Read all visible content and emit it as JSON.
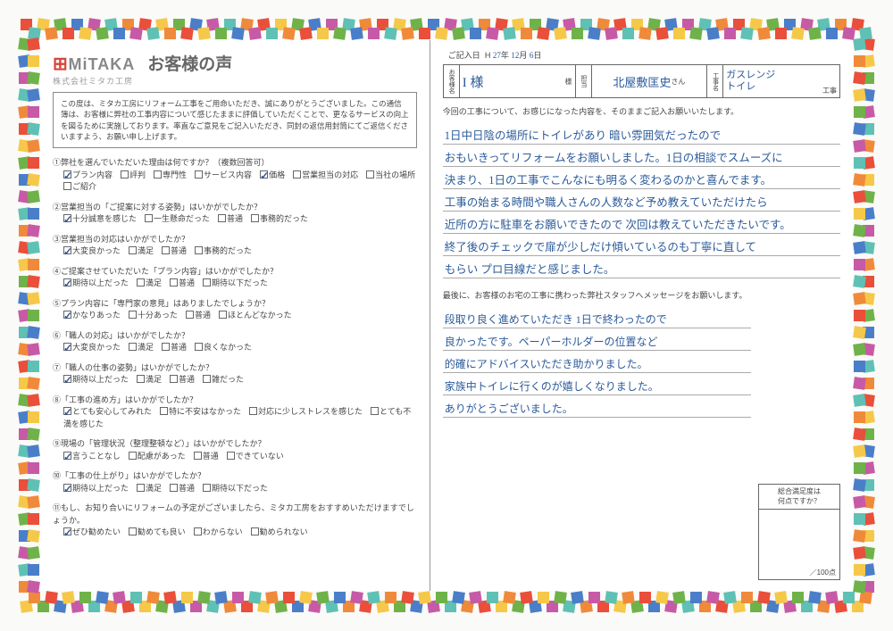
{
  "border_colors": [
    "#e94f3a",
    "#f6c84a",
    "#6fb24a",
    "#4a7ec9",
    "#c75aa6",
    "#5fc1b5",
    "#f08a3b"
  ],
  "logo": {
    "brand": "MiTAKA",
    "sub": "株式会社ミタカ工房",
    "mark": "⊞"
  },
  "title": "お客様の声",
  "intro": "この度は、ミタカ工房にリフォーム工事をご用命いただき、誠にありがとうございました。この通信簿は、お客様に弊社の工事内容について感じたままに評価していただくことで、更なるサービスの向上を図るために実施しております。率直なご意見をご記入いただき、同封の返信用封筒にてご返信くださいますよう、お願い申し上げます。",
  "questions": [
    {
      "t": "①弊社を選んでいただいた理由は何ですか？（複数回答可）",
      "opts": [
        {
          "l": "プラン内容",
          "c": true
        },
        {
          "l": "評判",
          "c": false
        },
        {
          "l": "専門性",
          "c": false
        },
        {
          "l": "サービス内容",
          "c": false
        },
        {
          "l": "価格",
          "c": true
        },
        {
          "l": "営業担当の対応",
          "c": false
        },
        {
          "l": "当社の場所",
          "c": false
        },
        {
          "l": "ご紹介",
          "c": false
        }
      ]
    },
    {
      "t": "②営業担当の「ご提案に対する姿勢」はいかがでしたか？",
      "opts": [
        {
          "l": "十分誠意を感じた",
          "c": true
        },
        {
          "l": "一生懸命だった",
          "c": false
        },
        {
          "l": "普通",
          "c": false
        },
        {
          "l": "事務的だった",
          "c": false
        }
      ]
    },
    {
      "t": "③営業担当の対応はいかがでしたか？",
      "opts": [
        {
          "l": "大変良かった",
          "c": true
        },
        {
          "l": "満足",
          "c": false
        },
        {
          "l": "普通",
          "c": false
        },
        {
          "l": "事務的だった",
          "c": false
        }
      ]
    },
    {
      "t": "④ご提案させていただいた「プラン内容」はいかがでしたか？",
      "opts": [
        {
          "l": "期待以上だった",
          "c": true
        },
        {
          "l": "満足",
          "c": false
        },
        {
          "l": "普通",
          "c": false
        },
        {
          "l": "期待以下だった",
          "c": false
        }
      ]
    },
    {
      "t": "⑤プラン内容に「専門家の意見」はありましたでしょうか？",
      "opts": [
        {
          "l": "かなりあった",
          "c": true
        },
        {
          "l": "十分あった",
          "c": false
        },
        {
          "l": "普通",
          "c": false
        },
        {
          "l": "ほとんどなかった",
          "c": false
        }
      ]
    },
    {
      "t": "⑥「職人の対応」はいかがでしたか？",
      "opts": [
        {
          "l": "大変良かった",
          "c": true
        },
        {
          "l": "満足",
          "c": false
        },
        {
          "l": "普通",
          "c": false
        },
        {
          "l": "良くなかった",
          "c": false
        }
      ]
    },
    {
      "t": "⑦「職人の仕事の姿勢」はいかがでしたか？",
      "opts": [
        {
          "l": "期待以上だった",
          "c": true
        },
        {
          "l": "満足",
          "c": false
        },
        {
          "l": "普通",
          "c": false
        },
        {
          "l": "雑だった",
          "c": false
        }
      ]
    },
    {
      "t": "⑧「工事の進め方」はいかがでしたか？",
      "opts": [
        {
          "l": "とても安心してみれた",
          "c": true
        },
        {
          "l": "特に不安はなかった",
          "c": false
        },
        {
          "l": "対応に少しストレスを感じた",
          "c": false
        },
        {
          "l": "とても不満を感じた",
          "c": false
        }
      ]
    },
    {
      "t": "⑨現場の「管理状況（整理整頓など）」はいかがでしたか？",
      "opts": [
        {
          "l": "言うことなし",
          "c": true
        },
        {
          "l": "配慮があった",
          "c": false
        },
        {
          "l": "普通",
          "c": false
        },
        {
          "l": "できていない",
          "c": false
        }
      ]
    },
    {
      "t": "⑩「工事の仕上がり」はいかがでしたか？",
      "opts": [
        {
          "l": "期待以上だった",
          "c": true
        },
        {
          "l": "満足",
          "c": false
        },
        {
          "l": "普通",
          "c": false
        },
        {
          "l": "期待以下だった",
          "c": false
        }
      ]
    },
    {
      "t": "⑪もし、お知り合いにリフォームの予定がございましたら、ミタカ工房をおすすめいただけますでしょうか。",
      "opts": [
        {
          "l": "ぜひ勧めたい",
          "c": true
        },
        {
          "l": "勧めても良い",
          "c": false
        },
        {
          "l": "わからない",
          "c": false
        },
        {
          "l": "勧められない",
          "c": false
        }
      ]
    }
  ],
  "date": {
    "label": "ご記入日",
    "era": "H",
    "y": "27",
    "ym": "年",
    "m": "12",
    "mm": "月",
    "d": "6",
    "dm": "日"
  },
  "info": {
    "labels": {
      "cust": "お客様名",
      "staff": "担当",
      "work": "工事名"
    },
    "customer": "I 様",
    "cust_suffix": "様",
    "staff": "北屋敷匡史",
    "staff_suffix": "さん",
    "work": "ガスレンジ\nトイレ",
    "work_suffix": "工事"
  },
  "feedback_label": "今回の工事について、お感じになった内容を、そのままご記入お願いいたします。",
  "feedback_lines": [
    "1日中日陰の場所にトイレがあり 暗い雰囲気だったので",
    "おもいきってリフォームをお願いしました。1日の相談でスムーズに",
    "決まり、1日の工事でこんなにも明るく変わるのかと喜んでます。",
    "工事の始まる時間や職人さんの人数など予め教えていただけたら",
    "近所の方に駐車をお願いできたので 次回は教えていただきたいです。",
    "終了後のチェックで扉が少しだけ傾いているのも丁寧に直して",
    "もらい プロ目線だと感じました。"
  ],
  "message_label": "最後に、お客様のお宅の工事に携わった弊社スタッフへメッセージをお願いします。",
  "message_lines": [
    "段取り良く進めていただき 1日で終わったので",
    "良かったです。ペーパーホルダーの位置など",
    "的確にアドバイスいただき助かりました。",
    "家族中トイレに行くのが嬉しくなりました。",
    "ありがとうございました。"
  ],
  "score": {
    "header": "総合満足度は\n何点ですか？",
    "unit": "／100点"
  }
}
